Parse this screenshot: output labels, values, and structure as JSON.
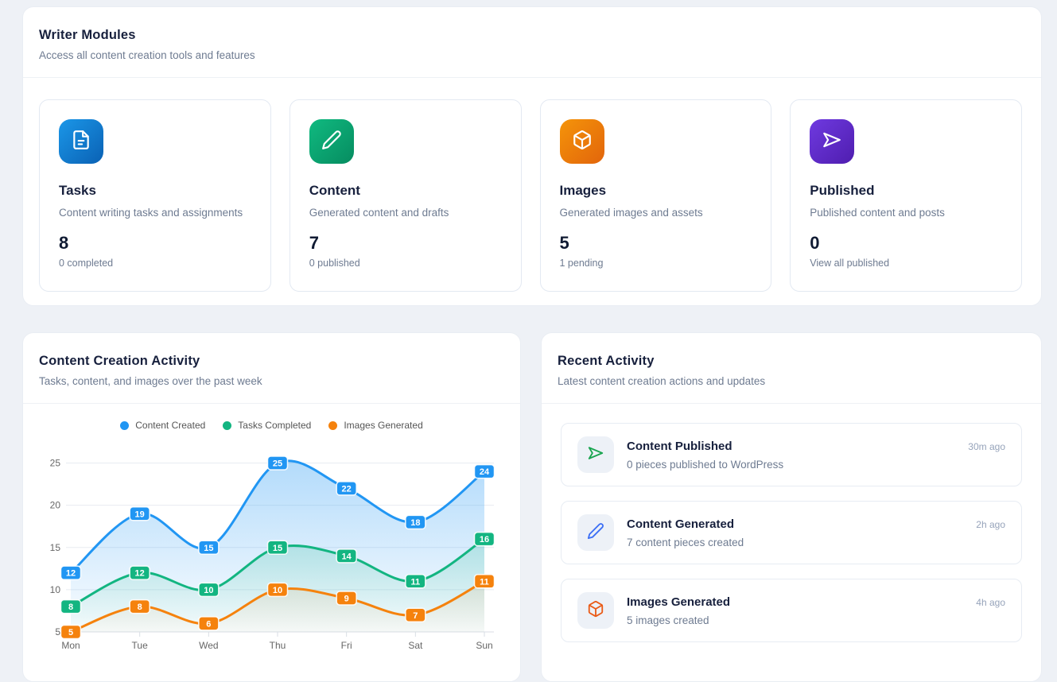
{
  "colors": {
    "page_background": "#eef1f6",
    "accent_blue": "#1b97e8",
    "accent_green": "#10ba80",
    "accent_orange": "#f5940a",
    "accent_purple": "#6f3ae0",
    "activity_icon_green": "#19a550",
    "activity_icon_blue": "#3b6ef5",
    "activity_icon_orange": "#ea5b17"
  },
  "modules_panel": {
    "title": "Writer Modules",
    "subtitle": "Access all content creation tools and features",
    "cards": [
      {
        "title": "Tasks",
        "description": "Content writing tasks and assignments",
        "count": "8",
        "sub": "0 completed",
        "icon": "file-icon",
        "accent": "blue"
      },
      {
        "title": "Content",
        "description": "Generated content and drafts",
        "count": "7",
        "sub": "0 published",
        "icon": "pencil-icon",
        "accent": "green"
      },
      {
        "title": "Images",
        "description": "Generated images and assets",
        "count": "5",
        "sub": "1 pending",
        "icon": "cube-icon",
        "accent": "orange"
      },
      {
        "title": "Published",
        "description": "Published content and posts",
        "count": "0",
        "sub": "View all published",
        "icon": "send-icon",
        "accent": "purple"
      }
    ]
  },
  "chart_panel": {
    "title": "Content Creation Activity",
    "subtitle": "Tasks, content, and images over the past week"
  },
  "chart_data": {
    "type": "line",
    "categories": [
      "Mon",
      "Tue",
      "Wed",
      "Thu",
      "Fri",
      "Sat",
      "Sun"
    ],
    "series": [
      {
        "name": "Content Created",
        "color": "#2196f3",
        "values": [
          12,
          19,
          15,
          25,
          22,
          18,
          24
        ]
      },
      {
        "name": "Tasks Completed",
        "color": "#13b581",
        "values": [
          8,
          12,
          10,
          15,
          14,
          11,
          16
        ]
      },
      {
        "name": "Images Generated",
        "color": "#f5820d",
        "values": [
          5,
          8,
          6,
          10,
          9,
          7,
          11
        ]
      }
    ],
    "y_ticks": [
      5,
      10,
      15,
      20,
      25
    ],
    "ylim": [
      5,
      27.5
    ],
    "grid": true,
    "smooth": true,
    "area_fill": true,
    "point_labels": true,
    "legend_position": "top"
  },
  "activity_panel": {
    "title": "Recent Activity",
    "subtitle": "Latest content creation actions and updates",
    "items": [
      {
        "title": "Content Published",
        "description": "0 pieces published to WordPress",
        "time": "30m ago",
        "icon": "send-icon",
        "accent": "green"
      },
      {
        "title": "Content Generated",
        "description": "7 content pieces created",
        "time": "2h ago",
        "icon": "pencil-icon",
        "accent": "blue"
      },
      {
        "title": "Images Generated",
        "description": "5 images created",
        "time": "4h ago",
        "icon": "cube-icon",
        "accent": "orange"
      }
    ]
  }
}
